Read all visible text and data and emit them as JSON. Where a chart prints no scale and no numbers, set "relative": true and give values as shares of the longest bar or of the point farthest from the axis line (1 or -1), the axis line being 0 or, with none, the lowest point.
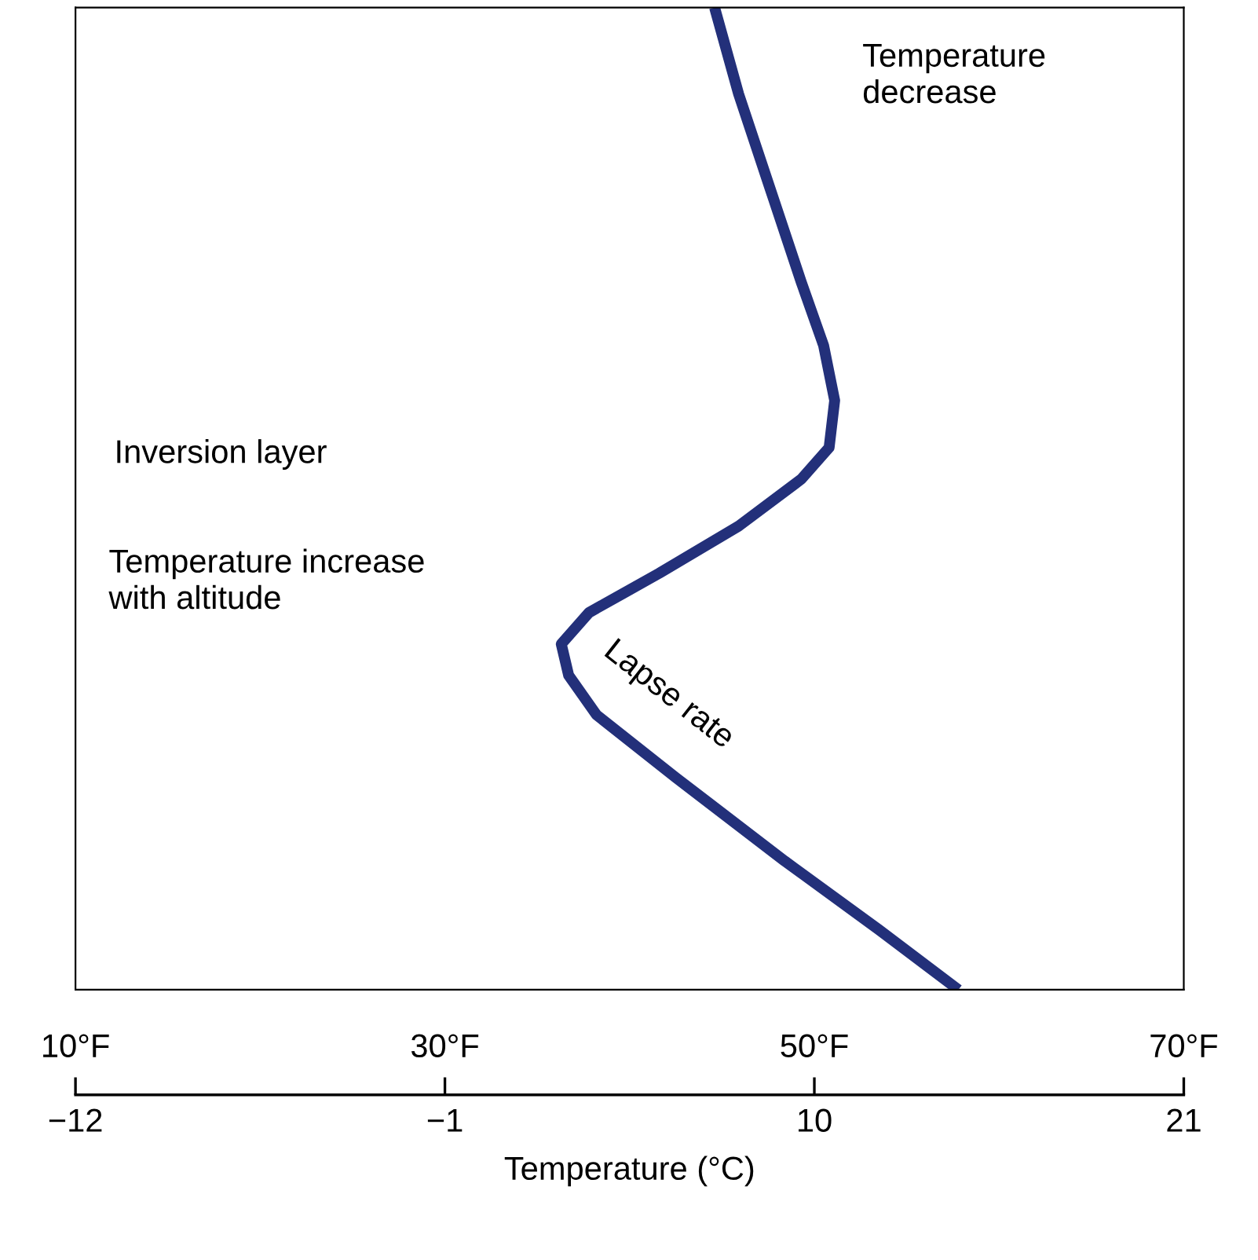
{
  "chart_data": {
    "type": "line",
    "relative": true,
    "xlim": [
      10,
      70
    ],
    "xticks": [
      {
        "value": 10,
        "label": "10°F"
      },
      {
        "value": 30,
        "label": "30°F"
      },
      {
        "value": 50,
        "label": "50°F"
      },
      {
        "value": 70,
        "label": "70°F"
      }
    ],
    "x2lim": [
      -12,
      21
    ],
    "x2ticks": [
      {
        "value": -12,
        "label": "−12"
      },
      {
        "value": -1,
        "label": "−1"
      },
      10,
      21
    ],
    "x2label": "Temperature (°C)",
    "line_style": "solid",
    "series": [
      {
        "color": "#23307a",
        "x": [
          44.6,
          45.9,
          47.6,
          49.3,
          50.5,
          51.1,
          50.8,
          49.3,
          45.9,
          41.6,
          37.8,
          36.3,
          36.7,
          38.2,
          42.5,
          48.4,
          53.5,
          57.8
        ],
        "values": [
          1.0,
          0.912,
          0.816,
          0.72,
          0.656,
          0.6,
          0.552,
          0.52,
          0.472,
          0.424,
          0.384,
          0.352,
          0.32,
          0.28,
          0.216,
          0.131,
          0.061,
          0.0
        ]
      }
    ],
    "annotations": [
      "Temperature\ndecrease",
      "Inversion layer",
      "Temperature increase\nwith altitude",
      "Lapse rate"
    ]
  }
}
